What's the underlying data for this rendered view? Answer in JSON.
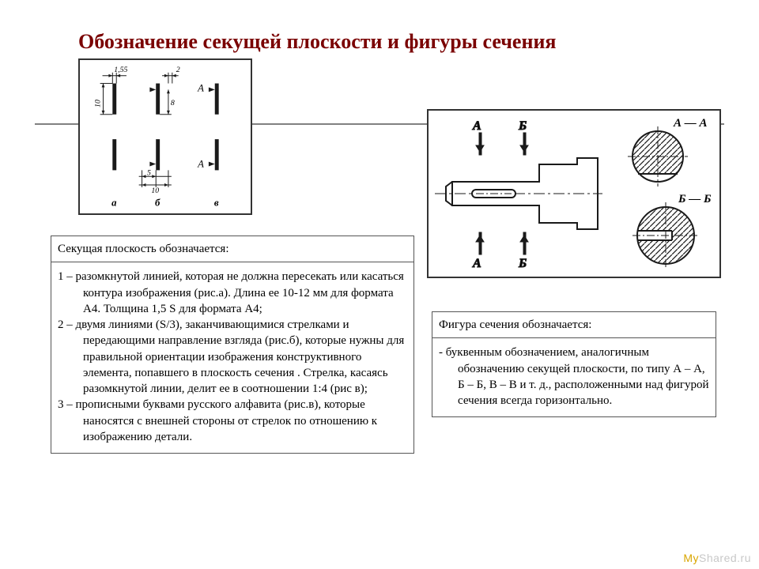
{
  "title": "Обозначение секущей плоскости и фигуры сечения",
  "left_table": {
    "header": "Секущая плоскость обозначается:",
    "body": "1 – разомкнутой линией, которая не должна пересекать или касаться контура изображения (рис.а). Длина ее 10-12 мм для формата А4. Толщина 1,5 S  для формата А4;\n2 – двумя линиями (S/3), заканчивающимися стрелками и передающими направление взгляда (рис.б), которые нужны для правильной ориентации изображения конструктивного элемента, попавшего в плоскость сечения . Стрелка, касаясь разомкнутой линии, делит ее в соотношении 1:4 (рис в);\n3 – прописными буквами русского алфавита (рис.в), которые наносятся с внешней стороны от стрелок по отношению к изображению детали."
  },
  "right_table": {
    "header": "Фигура сечения обозначается:",
    "body": "- буквенным обозначением, аналогичным обозначению секущей плоскости, по типу А – А, Б – Б, В – В и т. д., расположенными над фигурой сечения всегда горизонтально."
  },
  "fig1": {
    "dim_155": "1,55",
    "dim_10v": "10",
    "dim_2": "2",
    "dim_8": "8",
    "dim_5": "5",
    "dim_10": "10",
    "letter_A": "А",
    "lbl_a": "а",
    "lbl_b": "б",
    "lbl_v": "в",
    "stroke": "#1a1a1a",
    "thick_w": 4,
    "thin_w": 1
  },
  "fig2": {
    "letter_A": "А",
    "letter_B": "Б",
    "label_AA": "А — А",
    "label_BB": "Б — Б",
    "stroke": "#1a1a1a",
    "hatch_gap": 7
  },
  "watermark": {
    "prefix": "My",
    "suffix": "Shared.ru"
  }
}
